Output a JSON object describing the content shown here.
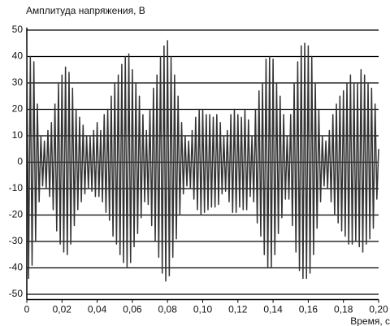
{
  "chart_data": {
    "type": "line",
    "title": "Амплитуда напряжения, В",
    "x_label": "Время, с",
    "x": [
      0,
      0.001,
      0.002,
      0.003,
      0.004,
      0.005,
      0.006,
      0.007,
      0.008,
      0.009,
      0.01,
      0.011,
      0.012,
      0.013,
      0.014,
      0.015,
      0.016,
      0.017,
      0.018,
      0.019,
      0.02,
      0.021,
      0.022,
      0.023,
      0.024,
      0.025,
      0.026,
      0.027,
      0.028,
      0.029,
      0.03,
      0.031,
      0.032,
      0.033,
      0.034,
      0.035,
      0.036,
      0.037,
      0.038,
      0.039,
      0.04,
      0.041,
      0.042,
      0.043,
      0.044,
      0.045,
      0.046,
      0.047,
      0.048,
      0.049,
      0.05,
      0.051,
      0.052,
      0.053,
      0.054,
      0.055,
      0.056,
      0.057,
      0.058,
      0.059,
      0.06,
      0.061,
      0.062,
      0.063,
      0.064,
      0.065,
      0.066,
      0.067,
      0.068,
      0.069,
      0.07,
      0.071,
      0.072,
      0.073,
      0.074,
      0.075,
      0.076,
      0.077,
      0.078,
      0.079,
      0.08,
      0.081,
      0.082,
      0.083,
      0.084,
      0.085,
      0.086,
      0.087,
      0.088,
      0.089,
      0.09,
      0.091,
      0.092,
      0.093,
      0.094,
      0.095,
      0.096,
      0.097,
      0.098,
      0.099,
      0.1,
      0.101,
      0.102,
      0.103,
      0.104,
      0.105,
      0.106,
      0.107,
      0.108,
      0.109,
      0.11,
      0.111,
      0.112,
      0.113,
      0.114,
      0.115,
      0.116,
      0.117,
      0.118,
      0.119,
      0.12,
      0.121,
      0.122,
      0.123,
      0.124,
      0.125,
      0.126,
      0.127,
      0.128,
      0.129,
      0.13,
      0.131,
      0.132,
      0.133,
      0.134,
      0.135,
      0.136,
      0.137,
      0.138,
      0.139,
      0.14,
      0.141,
      0.142,
      0.143,
      0.144,
      0.145,
      0.146,
      0.147,
      0.148,
      0.149,
      0.15,
      0.151,
      0.152,
      0.153,
      0.154,
      0.155,
      0.156,
      0.157,
      0.158,
      0.159,
      0.16,
      0.161,
      0.162,
      0.163,
      0.164,
      0.165,
      0.166,
      0.167,
      0.168,
      0.169,
      0.17,
      0.171,
      0.172,
      0.173,
      0.174,
      0.175,
      0.176,
      0.177,
      0.178,
      0.179,
      0.18,
      0.181,
      0.182,
      0.183,
      0.184,
      0.185,
      0.186,
      0.187,
      0.188,
      0.189,
      0.19,
      0.191,
      0.192,
      0.193,
      0.194,
      0.195,
      0.196,
      0.197,
      0.198,
      0.199,
      0.2
    ],
    "values": [
      47,
      -44,
      40,
      -39,
      38,
      -30,
      22,
      -15,
      10,
      -9,
      8,
      -10,
      12,
      -13,
      15,
      -18,
      22,
      -26,
      30,
      -31,
      33,
      -34,
      36,
      -35,
      34,
      -31,
      28,
      -24,
      20,
      -18,
      17,
      -15,
      14,
      -12,
      10,
      -10,
      10,
      -11,
      12,
      -13,
      15,
      -13,
      12,
      -15,
      18,
      -19,
      20,
      -22,
      25,
      -28,
      30,
      -31,
      33,
      -35,
      37,
      -38,
      40,
      -40,
      41,
      -38,
      35,
      -32,
      30,
      -27,
      25,
      -21,
      18,
      -15,
      12,
      -16,
      20,
      -24,
      28,
      -30,
      33,
      -36,
      40,
      -42,
      44,
      -45,
      46,
      -43,
      40,
      -36,
      33,
      -29,
      25,
      -20,
      15,
      -12,
      10,
      -9,
      8,
      -10,
      12,
      -14,
      17,
      -18,
      20,
      -20,
      20,
      -19,
      18,
      -18,
      18,
      -17,
      17,
      -17,
      18,
      -16,
      15,
      -12,
      10,
      -11,
      12,
      -15,
      18,
      -19,
      20,
      -19,
      18,
      -17,
      17,
      -18,
      20,
      -18,
      16,
      -13,
      10,
      -15,
      20,
      -23,
      27,
      -28,
      30,
      -35,
      39,
      -40,
      40,
      -40,
      39,
      -35,
      30,
      -27,
      25,
      -21,
      18,
      -14,
      10,
      -14,
      18,
      -24,
      30,
      -34,
      38,
      -41,
      44,
      -44,
      45,
      -44,
      44,
      -42,
      40,
      -35,
      30,
      -25,
      20,
      -15,
      10,
      -9,
      8,
      -10,
      12,
      -15,
      18,
      -20,
      22,
      -23,
      25,
      -26,
      27,
      -28,
      30,
      -31,
      33,
      -31,
      30,
      -30,
      30,
      -32,
      35,
      -34,
      33,
      -31,
      30,
      -29,
      28,
      -25,
      22,
      -14,
      5
    ],
    "color": "#333333",
    "xlim": [
      0,
      0.2
    ],
    "xticks": [
      0,
      {
        "value": 0.02,
        "label": "0,02"
      },
      {
        "value": 0.04,
        "label": "0,04"
      },
      {
        "value": 0.06,
        "label": "0,06"
      },
      {
        "value": 0.08,
        "label": "0,08"
      },
      {
        "value": 0.1,
        "label": "0,10"
      },
      {
        "value": 0.12,
        "label": "0,12"
      },
      {
        "value": 0.14,
        "label": "0,14"
      },
      {
        "value": 0.16,
        "label": "0,16"
      },
      {
        "value": 0.18,
        "label": "0,18"
      },
      {
        "value": 0.2,
        "label": "0,20"
      }
    ],
    "ylim": [
      -52,
      50
    ],
    "yticks": [
      -50,
      -40,
      -30,
      -20,
      -10,
      0,
      10,
      20,
      30,
      40,
      50
    ],
    "grid": true
  }
}
